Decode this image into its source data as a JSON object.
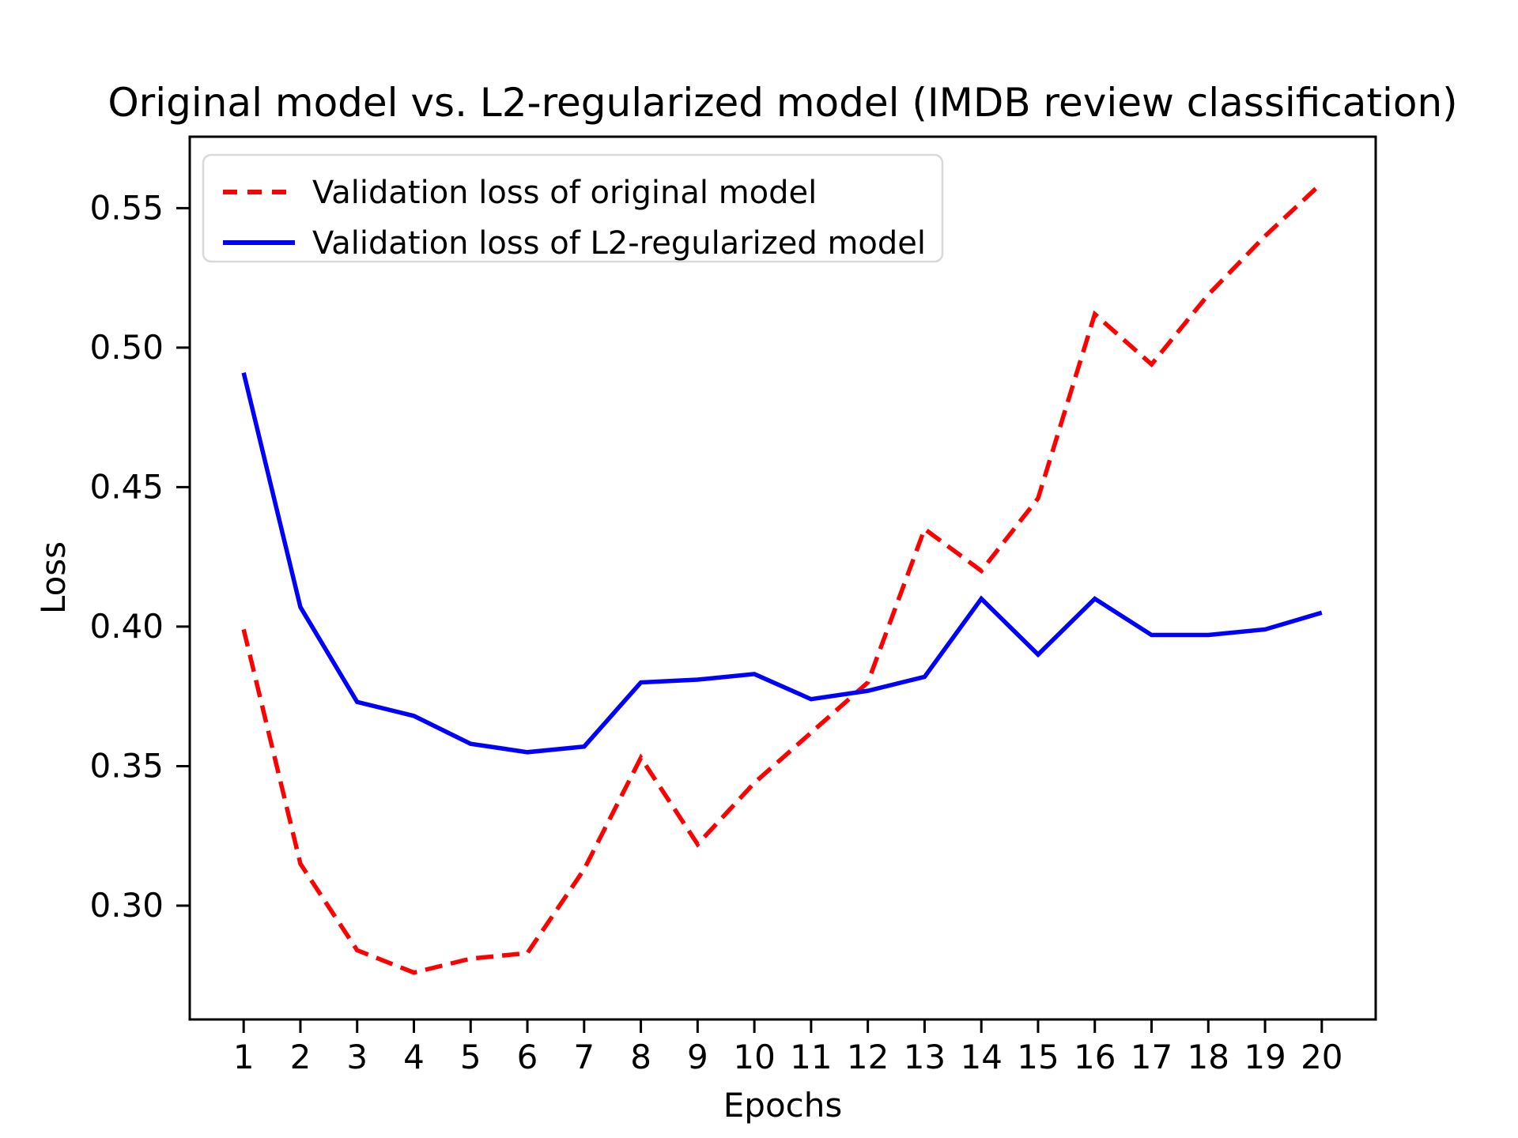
{
  "figure": {
    "title": "Original model vs. L2-regularized model (IMDB review classification)",
    "background": "#ffffff"
  },
  "chart_data": {
    "type": "line",
    "title": "Original model vs. L2-regularized model (IMDB review classification)",
    "xlabel": "Epochs",
    "ylabel": "Loss",
    "x": [
      1,
      2,
      3,
      4,
      5,
      6,
      7,
      8,
      9,
      10,
      11,
      12,
      13,
      14,
      15,
      16,
      17,
      18,
      19,
      20
    ],
    "series": [
      {
        "name": "Validation loss of original model",
        "color": "#ff0000",
        "style": "dashed",
        "values": [
          0.399,
          0.315,
          0.284,
          0.276,
          0.281,
          0.283,
          0.313,
          0.353,
          0.322,
          0.344,
          0.362,
          0.38,
          0.435,
          0.42,
          0.446,
          0.512,
          0.494,
          0.519,
          0.54,
          0.559
        ]
      },
      {
        "name": "Validation loss of L2-regularized model",
        "color": "#0000ff",
        "style": "solid",
        "values": [
          0.491,
          0.407,
          0.373,
          0.368,
          0.358,
          0.355,
          0.357,
          0.38,
          0.381,
          0.383,
          0.374,
          0.377,
          0.382,
          0.41,
          0.39,
          0.41,
          0.397,
          0.397,
          0.399,
          0.405
        ]
      }
    ],
    "xticks": [
      1,
      2,
      3,
      4,
      5,
      6,
      7,
      8,
      9,
      10,
      11,
      12,
      13,
      14,
      15,
      16,
      17,
      18,
      19,
      20
    ],
    "yticks": [
      0.3,
      0.35,
      0.4,
      0.45,
      0.5,
      0.55
    ],
    "ytick_labels": [
      "0.30",
      "0.35",
      "0.40",
      "0.45",
      "0.50",
      "0.55"
    ],
    "xlim": [
      0.05,
      20.95
    ],
    "ylim": [
      0.2592,
      0.5756
    ],
    "grid": false,
    "legend_position": "upper left",
    "axis_color": "#000000"
  }
}
